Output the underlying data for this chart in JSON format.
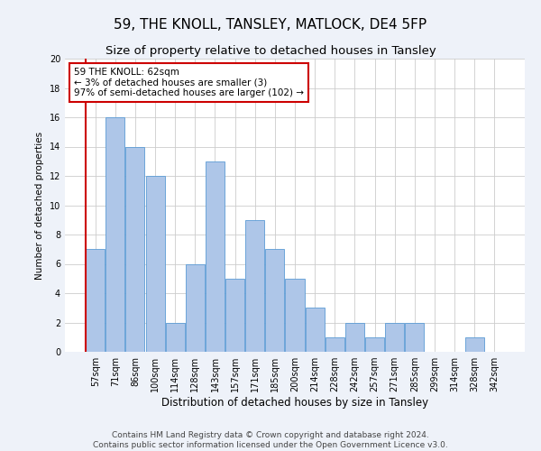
{
  "title": "59, THE KNOLL, TANSLEY, MATLOCK, DE4 5FP",
  "subtitle": "Size of property relative to detached houses in Tansley",
  "xlabel": "Distribution of detached houses by size in Tansley",
  "ylabel": "Number of detached properties",
  "categories": [
    "57sqm",
    "71sqm",
    "86sqm",
    "100sqm",
    "114sqm",
    "128sqm",
    "143sqm",
    "157sqm",
    "171sqm",
    "185sqm",
    "200sqm",
    "214sqm",
    "228sqm",
    "242sqm",
    "257sqm",
    "271sqm",
    "285sqm",
    "299sqm",
    "314sqm",
    "328sqm",
    "342sqm"
  ],
  "values": [
    7,
    16,
    14,
    12,
    2,
    6,
    13,
    5,
    9,
    7,
    5,
    3,
    1,
    2,
    1,
    2,
    2,
    0,
    0,
    1,
    0
  ],
  "bar_color": "#aec6e8",
  "bar_edge_color": "#5b9bd5",
  "highlight_line_color": "#cc0000",
  "annotation_text": "59 THE KNOLL: 62sqm\n← 3% of detached houses are smaller (3)\n97% of semi-detached houses are larger (102) →",
  "annotation_box_color": "#ffffff",
  "annotation_box_edge_color": "#cc0000",
  "ylim": [
    0,
    20
  ],
  "yticks": [
    0,
    2,
    4,
    6,
    8,
    10,
    12,
    14,
    16,
    18,
    20
  ],
  "footer": "Contains HM Land Registry data © Crown copyright and database right 2024.\nContains public sector information licensed under the Open Government Licence v3.0.",
  "background_color": "#eef2f9",
  "plot_background_color": "#ffffff",
  "grid_color": "#cccccc",
  "title_fontsize": 11,
  "subtitle_fontsize": 9.5,
  "xlabel_fontsize": 8.5,
  "ylabel_fontsize": 7.5,
  "tick_fontsize": 7,
  "footer_fontsize": 6.5,
  "annotation_fontsize": 7.5
}
